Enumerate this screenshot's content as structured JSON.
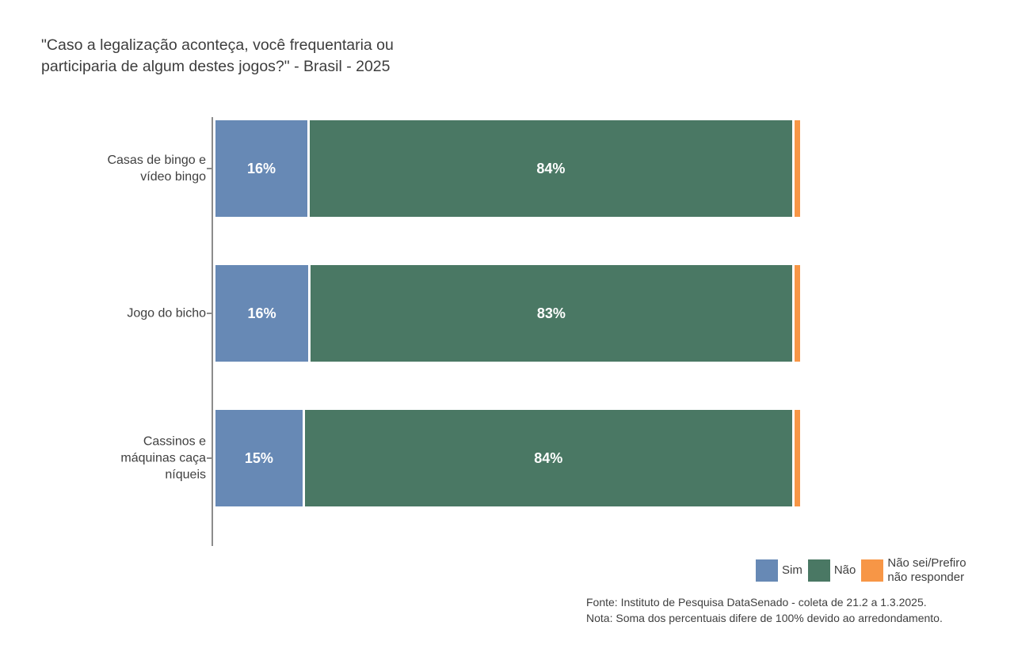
{
  "title": {
    "line1": "\"Caso a legalização aconteça, você frequentaria ou",
    "line2": "participaria de algum destes jogos?\" - Brasil - 2025"
  },
  "colors": {
    "sim": "#6789b5",
    "nao": "#4a7864",
    "nao_sei": "#f79646",
    "axis": "#8c8c8c",
    "text": "#404040"
  },
  "chart_data": {
    "type": "bar",
    "orientation": "horizontal",
    "stacked": true,
    "grid": false,
    "legend_position": "bottom-right",
    "title": "\"Caso a legalização aconteça, você frequentaria ou participaria de algum destes jogos?\" - Brasil - 2025",
    "categories": [
      "Casas de bingo e vídeo bingo",
      "Jogo do bicho",
      "Cassinos e máquinas caça níqueis"
    ],
    "categories_display": [
      [
        "Casas de bingo e",
        "vídeo bingo"
      ],
      [
        "Jogo do bicho"
      ],
      [
        "Cassinos e",
        "máquinas caça",
        "níqueis"
      ]
    ],
    "series": [
      {
        "name": "Sim",
        "color": "#6789b5",
        "values": [
          16,
          16,
          15
        ]
      },
      {
        "name": "Não",
        "color": "#4a7864",
        "values": [
          84,
          83,
          84
        ]
      },
      {
        "name": "Não sei/Prefiro não responder",
        "color": "#f79646",
        "values": [
          1,
          1,
          1
        ]
      }
    ],
    "value_labels": [
      [
        "16%",
        "84%",
        ""
      ],
      [
        "16%",
        "83%",
        ""
      ],
      [
        "15%",
        "84%",
        ""
      ]
    ],
    "xlim": [
      0,
      101
    ],
    "xlabel": "",
    "ylabel": ""
  },
  "legend": {
    "items": [
      {
        "color": "#6789b5",
        "lines": [
          "Sim"
        ]
      },
      {
        "color": "#4a7864",
        "lines": [
          "Não"
        ]
      },
      {
        "color": "#f79646",
        "lines": [
          "Não sei/Prefiro",
          "não responder"
        ]
      }
    ]
  },
  "footer": {
    "fonte": "Fonte: Instituto de Pesquisa DataSenado - coleta de 21.2 a 1.3.2025.",
    "nota": "Nota: Soma dos percentuais difere de 100% devido ao arredondamento."
  }
}
